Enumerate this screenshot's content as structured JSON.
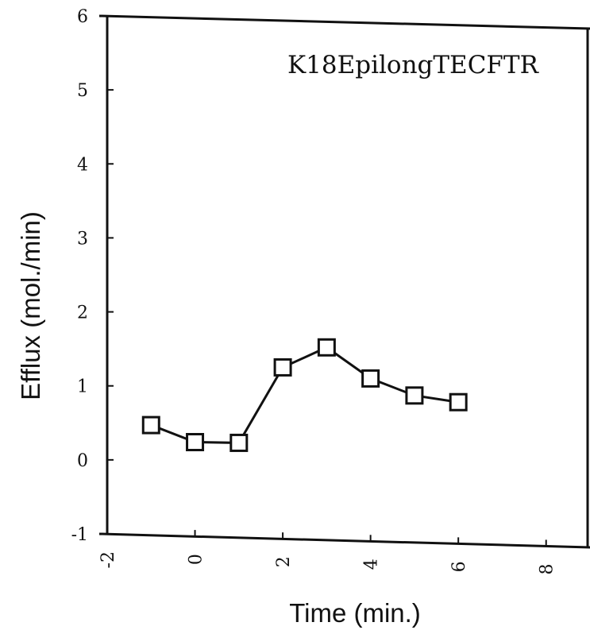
{
  "chart_data": {
    "type": "line",
    "title": "",
    "annotation": "K18EpilongTECFTR",
    "xlabel": "Time (min.)",
    "ylabel": "Efflux (mol./min)",
    "xlim": [
      -2,
      9
    ],
    "ylim": [
      -1,
      6
    ],
    "xticks": [
      -2,
      0,
      2,
      4,
      6,
      8
    ],
    "xtick_labels": [
      "-2",
      "0",
      "2",
      "4",
      "6",
      "8"
    ],
    "yticks": [
      -1,
      0,
      1,
      2,
      3,
      4,
      5,
      6
    ],
    "ytick_labels": [
      "-1",
      "0",
      "1",
      "2",
      "3",
      "4",
      "5",
      "6"
    ],
    "grid": false,
    "marker": "open-square",
    "series": [
      {
        "x": [
          -1,
          0,
          1,
          2,
          3,
          4,
          5,
          6
        ],
        "y": [
          0.47,
          0.24,
          0.23,
          1.25,
          1.52,
          1.1,
          0.87,
          0.78
        ]
      }
    ]
  }
}
